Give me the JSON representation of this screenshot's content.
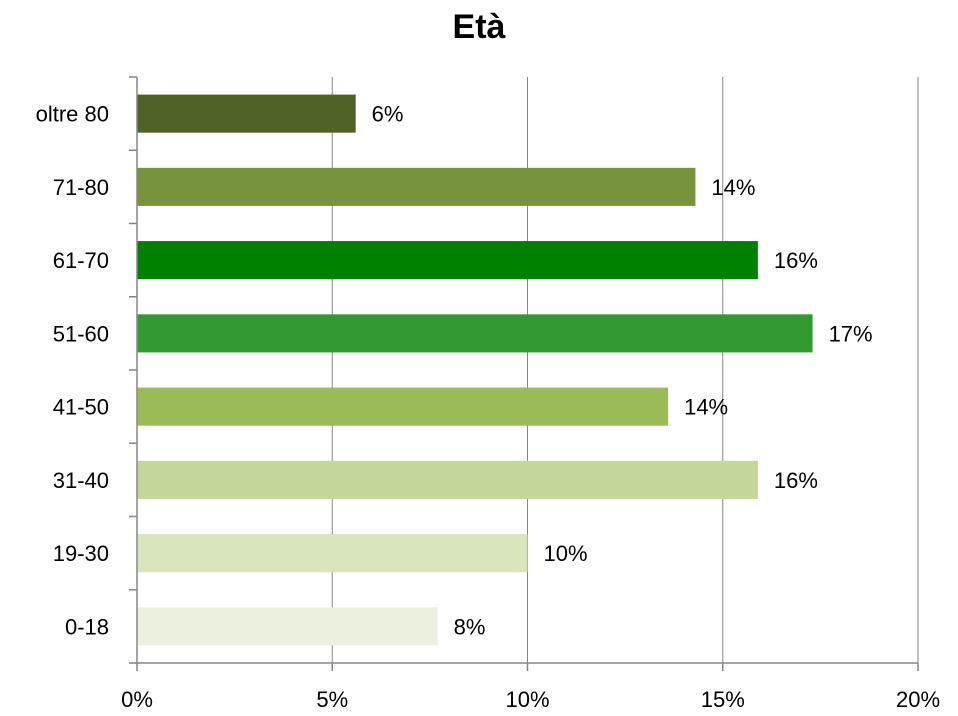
{
  "chart_data": {
    "type": "bar",
    "orientation": "horizontal",
    "title": "Età",
    "categories": [
      "0-18",
      "19-30",
      "31-40",
      "41-50",
      "51-60",
      "61-70",
      "71-80",
      "oltre 80"
    ],
    "values": [
      7.7,
      10.0,
      15.9,
      13.6,
      17.3,
      15.9,
      14.3,
      5.6
    ],
    "data_labels": [
      "8%",
      "10%",
      "16%",
      "14%",
      "17%",
      "16%",
      "14%",
      "6%"
    ],
    "bar_colors": [
      "#EBF1DE",
      "#D8E4BC",
      "#C4D79B",
      "#9BBB59",
      "#339933",
      "#008000",
      "#77933C",
      "#4F6228"
    ],
    "x_ticks": [
      0,
      5,
      10,
      15,
      20
    ],
    "x_tick_labels": [
      "0%",
      "5%",
      "10%",
      "15%",
      "20%"
    ],
    "xlim": [
      0,
      20
    ],
    "xlabel": "",
    "ylabel": "",
    "grid": "vertical major gridlines",
    "legend": "none"
  }
}
